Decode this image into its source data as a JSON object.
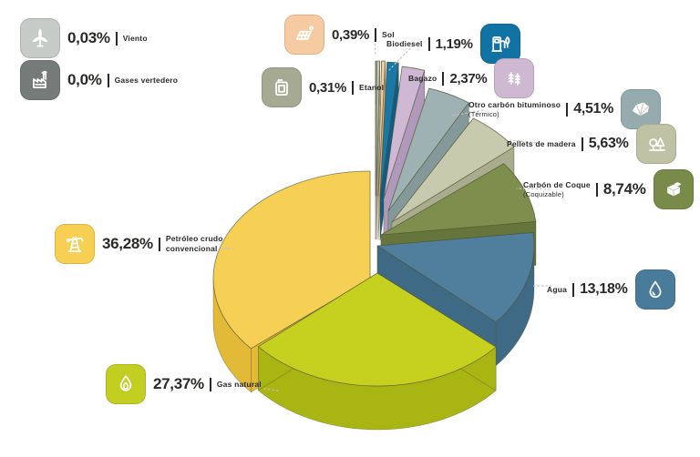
{
  "chart_data": {
    "type": "pie",
    "style": "3d-exploded",
    "title": "",
    "unit": "%",
    "decimal_separator": ",",
    "start_angle_deg_from_top": 0,
    "direction": "clockwise-ascending-by-value",
    "slices": [
      {
        "label": "Viento",
        "pct_label": "0,03%",
        "value": 0.03,
        "color": "#c6cbc8",
        "side_color": "#aab0ac",
        "icon": "wind-turbine",
        "icon_color": "#c6cbc8"
      },
      {
        "label": "Gases vertedero",
        "pct_label": "0,0%",
        "value": 0.0,
        "color": "#757b78",
        "side_color": "#5f6462",
        "icon": "factory",
        "icon_color": "#757b78"
      },
      {
        "label": "Etanol",
        "pct_label": "0,31%",
        "value": 0.31,
        "color": "#c6cbb9",
        "side_color": "#a6ab98",
        "icon": "jerrycan",
        "icon_color": "#a6aa93"
      },
      {
        "label": "Sol",
        "pct_label": "0,39%",
        "value": 0.39,
        "color": "#f3ca9e",
        "side_color": "#d9ab76",
        "icon": "solar-panel",
        "icon_color": "#f6cba1"
      },
      {
        "label": "Biodiesel",
        "pct_label": "1,19%",
        "value": 1.19,
        "color": "#1a78a7",
        "side_color": "#0e5d85",
        "icon": "fuel-pump-leaf",
        "icon_color": "#1173a3"
      },
      {
        "label": "Bagazo",
        "pct_label": "2,37%",
        "value": 2.37,
        "color": "#cfb8d3",
        "side_color": "#b199bb",
        "icon": "sugarcane",
        "icon_color": "#cfb8d2"
      },
      {
        "label": "Otro carbón bituminoso",
        "sublabel": "(Térmico)",
        "pct_label": "4,51%",
        "value": 4.51,
        "color": "#9eb2b3",
        "side_color": "#85989a",
        "icon": "coal-rock",
        "icon_color": "#95abae"
      },
      {
        "label": "Pellets de madera",
        "pct_label": "5,63%",
        "value": 5.63,
        "color": "#c8caae",
        "side_color": "#a9ac8d",
        "icon": "trees",
        "icon_color": "#bfc2a4"
      },
      {
        "label": "Carbón de Coque",
        "sublabel": "(Coquizable)",
        "pct_label": "8,74%",
        "value": 8.74,
        "color": "#7e8f4d",
        "side_color": "#66753c",
        "icon": "coal-cubes",
        "icon_color": "#798b48"
      },
      {
        "label": "Agua",
        "pct_label": "13,18%",
        "value": 13.18,
        "color": "#4f7f9d",
        "side_color": "#3e6a85",
        "icon": "water-drop",
        "icon_color": "#497c9b"
      },
      {
        "label": "Gas natural",
        "pct_label": "27,37%",
        "value": 27.37,
        "color": "#c6d01f",
        "side_color": "#a9b512",
        "icon": "flame",
        "icon_color": "#c3cf20"
      },
      {
        "label": "Petróleo crudo convencional",
        "pct_label": "36,28%",
        "value": 36.28,
        "color": "#f6d055",
        "side_color": "#e3ba37",
        "icon": "oil-derrick",
        "icon_color": "#f6cf53"
      }
    ],
    "order_clockwise_from_top": [
      "Gases vertedero",
      "Viento",
      "Etanol",
      "Sol",
      "Biodiesel",
      "Bagazo",
      "Otro carbón bituminoso",
      "Pellets de madera",
      "Carbón de Coque",
      "Agua",
      "Gas natural",
      "Petróleo crudo convencional"
    ]
  }
}
